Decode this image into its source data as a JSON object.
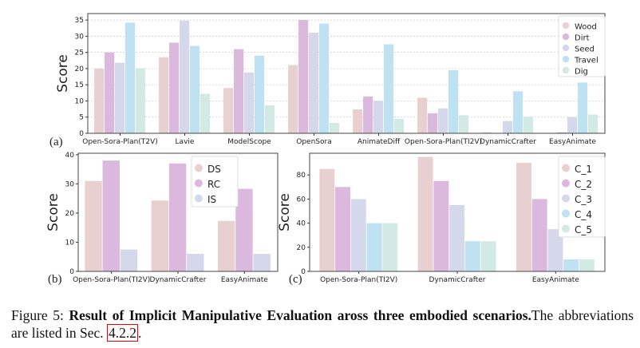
{
  "chart_data": [
    {
      "id": "a",
      "panel_label": "(a)",
      "type": "bar",
      "ylabel": "Score",
      "ylim": [
        0,
        37
      ],
      "yticks": [
        0,
        5,
        10,
        15,
        20,
        25,
        30,
        35
      ],
      "grid": true,
      "legend": "top-right",
      "categories": [
        "Open-Sora-Plan(T2V)",
        "Lavie",
        "ModelScope",
        "OpenSora",
        "AnimateDiff",
        "Open-Sora-Plan(TI2V)",
        "DynamicCrafter",
        "EasyAnimate"
      ],
      "series": [
        {
          "name": "Wood",
          "color": "#e8d0d0",
          "values": [
            20,
            23.5,
            14,
            21.1,
            7.4,
            11,
            0.3,
            0
          ]
        },
        {
          "name": "Dirt",
          "color": "#dbb8dd",
          "values": [
            25,
            28,
            26,
            35,
            11.4,
            6.2,
            0,
            0.3
          ]
        },
        {
          "name": "Seed",
          "color": "#d5d8ea",
          "values": [
            21.8,
            34.8,
            18.8,
            31.1,
            10,
            7.7,
            3.8,
            5
          ]
        },
        {
          "name": "Travel",
          "color": "#bfe2f2",
          "values": [
            34.2,
            27,
            24,
            33.9,
            27.5,
            19.5,
            13,
            15.7
          ]
        },
        {
          "name": "Dig",
          "color": "#d2e9e4",
          "values": [
            20.1,
            12.2,
            8.7,
            3.2,
            4.5,
            5.6,
            5.2,
            5.8
          ]
        }
      ]
    },
    {
      "id": "b",
      "panel_label": "(b)",
      "type": "bar",
      "ylabel": "Score",
      "ylim": [
        0,
        40.5
      ],
      "yticks": [
        0,
        10,
        20,
        30,
        40
      ],
      "grid": false,
      "legend": "top-right",
      "categories": [
        "Open-Sora-Plan(TI2V)",
        "DynamicCrafter",
        "EasyAnimate"
      ],
      "series": [
        {
          "name": "DS",
          "color": "#e8d0d0",
          "values": [
            31,
            24.3,
            17.3
          ]
        },
        {
          "name": "RC",
          "color": "#dbb8dd",
          "values": [
            38,
            37,
            28.3
          ]
        },
        {
          "name": "IS",
          "color": "#d5d8ea",
          "values": [
            7.5,
            6,
            6
          ]
        }
      ]
    },
    {
      "id": "c",
      "panel_label": "(c)",
      "type": "bar",
      "ylabel": "Score",
      "ylim": [
        0,
        98
      ],
      "yticks": [
        0,
        20,
        40,
        60,
        80
      ],
      "grid": false,
      "legend": "top-right",
      "categories": [
        "Open-Sora-Plan(TI2V)",
        "DynamicCrafter",
        "EasyAnimate"
      ],
      "series": [
        {
          "name": "C_1",
          "color": "#e8d0d0",
          "values": [
            85,
            95,
            90
          ]
        },
        {
          "name": "C_2",
          "color": "#dbb8dd",
          "values": [
            70,
            75,
            60
          ]
        },
        {
          "name": "C_3",
          "color": "#d5d8ea",
          "values": [
            60,
            55,
            35
          ]
        },
        {
          "name": "C_4",
          "color": "#bfe2f2",
          "values": [
            40,
            25,
            10
          ]
        },
        {
          "name": "C_5",
          "color": "#d2e9e4",
          "values": [
            40,
            25,
            10
          ]
        }
      ]
    }
  ],
  "caption": {
    "prefix": "Figure 5: ",
    "bold": "Result of Implicit Manipulative Evaluation aross three embodied scenarios.",
    "rest": "The abbreviations are listed in Sec. ",
    "ref": "4.2.2",
    "end": "."
  }
}
